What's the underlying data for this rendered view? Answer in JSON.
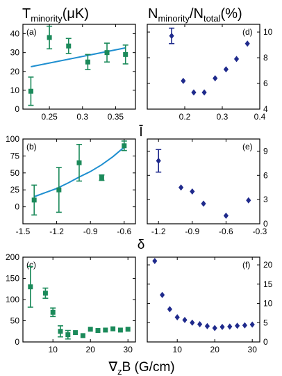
{
  "titles": {
    "left": {
      "main": "T",
      "sub": "minority",
      "tail": "(μK)"
    },
    "right": {
      "main": "N",
      "sub1": "minority",
      "mid": "/N",
      "sub2": "total",
      "tail": "(%)"
    }
  },
  "xlabels": {
    "row1": "Ī",
    "row2": "δ",
    "row3": {
      "main": "∇",
      "sub": "z",
      "tail": "B (G/cm)"
    }
  },
  "colors": {
    "green": "#1b8a5a",
    "navy": "#1f2a8c",
    "fit": "#1f8fd0"
  },
  "chart_data": [
    {
      "id": "a",
      "label": "(a)",
      "type": "scatter",
      "xlim": [
        0.21,
        0.38
      ],
      "ylim": [
        0,
        45
      ],
      "xticks": [
        0.25,
        0.3,
        0.35
      ],
      "xticklabels": [
        "0.25",
        "0.3",
        "0.35"
      ],
      "yticks": [
        0,
        10,
        20,
        30,
        40
      ],
      "yticklabels": [
        "0",
        "10",
        "20",
        "30",
        "40"
      ],
      "yaxis_side": "left",
      "marker": "square",
      "color": "green",
      "x": [
        0.222,
        0.25,
        0.279,
        0.308,
        0.337,
        0.365
      ],
      "y": [
        9.5,
        38,
        33.5,
        25,
        30,
        29
      ],
      "yerr": [
        7.5,
        6,
        4,
        4,
        5,
        5
      ],
      "fit": {
        "type": "linear",
        "x": [
          0.222,
          0.365
        ],
        "y": [
          22.5,
          32.5
        ]
      }
    },
    {
      "id": "d",
      "label": "(d)",
      "type": "scatter",
      "xlim": [
        0.1,
        0.4
      ],
      "ylim": [
        4,
        10.6
      ],
      "xticks": [
        0.2,
        0.3,
        0.4
      ],
      "xticklabels": [
        "0.2",
        "0.3",
        "0.4"
      ],
      "yticks": [
        4,
        6,
        8,
        10
      ],
      "yticklabels": [
        "4",
        "6",
        "8",
        "10"
      ],
      "yaxis_side": "right",
      "marker": "diamond",
      "color": "navy",
      "x": [
        0.165,
        0.196,
        0.224,
        0.252,
        0.281,
        0.31,
        0.338,
        0.367
      ],
      "y": [
        9.7,
        6.2,
        5.3,
        5.3,
        6.4,
        7.1,
        7.9,
        9.1
      ],
      "yerr": [
        0.6,
        0,
        0,
        0,
        0,
        0,
        0,
        0
      ]
    },
    {
      "id": "b",
      "label": "(b)",
      "type": "scatter",
      "xlim": [
        -1.5,
        -0.5
      ],
      "ylim": [
        -25,
        100
      ],
      "xticks": [
        -1.5,
        -1.2,
        -0.9,
        -0.6
      ],
      "xticklabels": [
        "-1.5",
        "-1.2",
        "-0.9",
        "-0.6"
      ],
      "yticks": [
        0,
        25,
        50,
        75,
        100
      ],
      "yticklabels": [
        "0",
        "25",
        "50",
        "75",
        "100"
      ],
      "yaxis_side": "left",
      "marker": "square",
      "color": "green",
      "x": [
        -1.4,
        -1.18,
        -1.0,
        -0.8,
        -0.6
      ],
      "y": [
        10,
        25,
        65,
        43,
        90
      ],
      "yerr": [
        22,
        33,
        27,
        4,
        7
      ],
      "fit": {
        "type": "curve",
        "x": [
          -1.4,
          -1.3,
          -1.2,
          -1.1,
          -1.0,
          -0.9,
          -0.8,
          -0.7,
          -0.6
        ],
        "y": [
          15,
          21,
          27,
          35,
          44,
          52,
          62,
          74,
          88
        ]
      }
    },
    {
      "id": "e",
      "label": "(e)",
      "type": "scatter",
      "xlim": [
        -1.3,
        -0.3
      ],
      "ylim": [
        0,
        10.5
      ],
      "xticks": [
        -1.2,
        -0.9,
        -0.6,
        -0.3
      ],
      "xticklabels": [
        "-1.2",
        "-0.9",
        "-0.6",
        "-0.3"
      ],
      "yticks": [
        0,
        3,
        6,
        9
      ],
      "yticklabels": [
        "0",
        "3",
        "6",
        "9"
      ],
      "yaxis_side": "right",
      "marker": "diamond",
      "color": "navy",
      "x": [
        -1.2,
        -1.0,
        -0.9,
        -0.8,
        -0.6,
        -0.4
      ],
      "y": [
        7.8,
        4.5,
        4.0,
        2.5,
        1.0,
        2.9
      ],
      "yerr": [
        1.4,
        0,
        0,
        0,
        0,
        0
      ]
    },
    {
      "id": "c",
      "label": "(c)",
      "type": "scatter",
      "xlim": [
        2,
        32
      ],
      "ylim": [
        0,
        200
      ],
      "xticks": [
        10,
        20,
        30
      ],
      "xticklabels": [
        "10",
        "20",
        "30"
      ],
      "yticks": [
        0,
        50,
        100,
        150,
        200
      ],
      "yticklabels": [
        "0",
        "50",
        "100",
        "150",
        "200"
      ],
      "yaxis_side": "left",
      "marker": "square",
      "color": "green",
      "x": [
        4,
        8,
        10,
        12,
        14,
        16,
        18,
        20,
        22,
        24,
        26,
        28,
        30
      ],
      "y": [
        130,
        115,
        70,
        25,
        17,
        22,
        15,
        30,
        27,
        28,
        31,
        28,
        30
      ],
      "yerr": [
        48,
        12,
        10,
        13,
        10,
        0,
        0,
        0,
        0,
        0,
        0,
        0,
        0
      ]
    },
    {
      "id": "f",
      "label": "(f)",
      "type": "scatter",
      "xlim": [
        2,
        32
      ],
      "ylim": [
        0,
        22
      ],
      "xticks": [
        10,
        20,
        30
      ],
      "xticklabels": [
        "10",
        "20",
        "30"
      ],
      "yticks": [
        0,
        5,
        10,
        15,
        20
      ],
      "yticklabels": [
        "0",
        "5",
        "10",
        "15",
        "20"
      ],
      "yaxis_side": "right",
      "marker": "diamond",
      "color": "navy",
      "x": [
        4,
        6,
        8,
        10,
        12,
        14,
        16,
        18,
        20,
        22,
        24,
        26,
        28,
        30
      ],
      "y": [
        21,
        12.2,
        8.5,
        6.4,
        5.7,
        5.0,
        4.6,
        4.1,
        3.6,
        3.9,
        4.0,
        4.2,
        4.3,
        4.5
      ],
      "yerr": [
        0,
        0,
        0,
        0,
        0,
        0,
        0,
        0,
        0,
        0,
        0,
        0,
        0,
        0
      ]
    }
  ]
}
